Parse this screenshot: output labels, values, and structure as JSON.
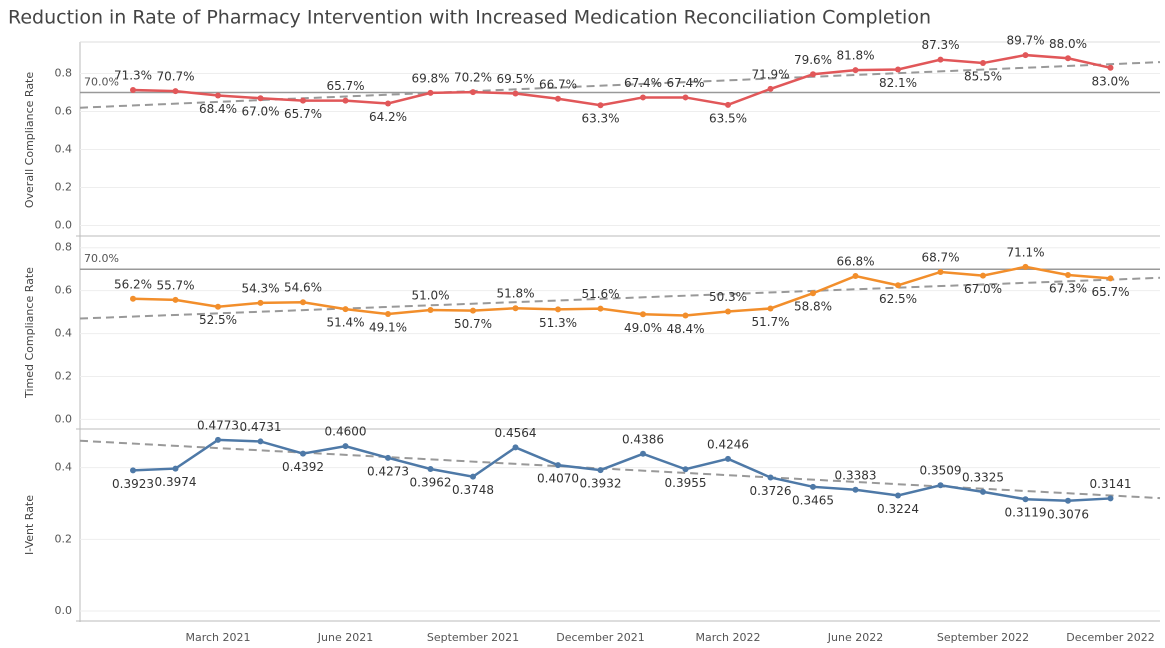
{
  "title": "Reduction in Rate of Pharmacy Intervention with Increased Medication Reconciliation Completion",
  "chart_data": [
    {
      "type": "line",
      "y_label": "Overall Compliance Rate",
      "ylim": [
        -0.05,
        0.95
      ],
      "yticks": [
        {
          "value": 0,
          "label": "0.0"
        },
        0.2,
        0.4,
        0.6,
        0.8
      ],
      "grid": true,
      "reference": {
        "value": 0.7,
        "label": "70.0%"
      },
      "trend": [
        0.62,
        0.86
      ],
      "series": [
        {
          "name": "Overall Compliance Rate",
          "color": "#e15759",
          "values": [
            0.713,
            0.707,
            0.684,
            0.67,
            0.657,
            0.657,
            0.642,
            0.698,
            0.702,
            0.695,
            0.667,
            0.633,
            0.674,
            0.674,
            0.635,
            0.719,
            0.796,
            0.818,
            0.821,
            0.873,
            0.855,
            0.897,
            0.88,
            0.83
          ],
          "value_labels": [
            "71.3%",
            "70.7%",
            "68.4%",
            "67.0%",
            "65.7%",
            "65.7%",
            "64.2%",
            "69.8%",
            "70.2%",
            "69.5%",
            "66.7%",
            "63.3%",
            "67.4%",
            "67.4%",
            "63.5%",
            "71.9%",
            "79.6%",
            "81.8%",
            "82.1%",
            "87.3%",
            "85.5%",
            "89.7%",
            "88.0%",
            "83.0%"
          ]
        }
      ]
    },
    {
      "type": "line",
      "y_label": "Timed Compliance Rate",
      "ylim": [
        -0.04,
        0.85
      ],
      "yticks": [
        {
          "value": 0,
          "label": "0.0"
        },
        0.2,
        0.4,
        0.6,
        0.8
      ],
      "grid": true,
      "reference": {
        "value": 0.7,
        "label": "70.0%"
      },
      "trend": [
        0.47,
        0.66
      ],
      "series": [
        {
          "name": "Timed Compliance Rate",
          "color": "#f28e2b",
          "values": [
            0.562,
            0.557,
            0.525,
            0.543,
            0.546,
            0.514,
            0.491,
            0.51,
            0.507,
            0.518,
            0.513,
            0.516,
            0.49,
            0.484,
            0.503,
            0.517,
            0.588,
            0.668,
            0.625,
            0.687,
            0.67,
            0.711,
            0.673,
            0.657
          ],
          "value_labels": [
            "56.2%",
            "55.7%",
            "52.5%",
            "54.3%",
            "54.6%",
            "51.4%",
            "49.1%",
            "51.0%",
            "50.7%",
            "51.8%",
            "51.3%",
            "51.6%",
            "49.0%",
            "48.4%",
            "50.3%",
            "51.7%",
            "58.8%",
            "66.8%",
            "62.5%",
            "68.7%",
            "67.0%",
            "71.1%",
            "67.3%",
            "65.7%"
          ]
        }
      ]
    },
    {
      "type": "line",
      "y_label": "I-Vent Rate",
      "ylim": [
        -0.025,
        0.505
      ],
      "yticks": [
        {
          "value": 0,
          "label": "0.0"
        },
        0.2,
        0.4
      ],
      "grid": true,
      "trend": [
        0.475,
        0.315
      ],
      "categories": [
        null,
        null,
        "March 2021",
        null,
        null,
        "June 2021",
        null,
        null,
        "September 2021",
        null,
        null,
        "December 2021",
        null,
        null,
        "March 2022",
        null,
        null,
        "June 2022",
        null,
        null,
        "September 2022",
        null,
        null,
        "December 2022"
      ],
      "series": [
        {
          "name": "I-Vent Rate",
          "color": "#4e79a7",
          "values": [
            0.3923,
            0.3974,
            0.4773,
            0.4731,
            0.4392,
            0.46,
            0.4273,
            0.3962,
            0.3748,
            0.4564,
            0.407,
            0.3932,
            0.4386,
            0.3955,
            0.4246,
            0.3726,
            0.3465,
            0.3383,
            0.3224,
            0.3509,
            0.3325,
            0.3119,
            0.3076,
            0.3141
          ],
          "value_labels": [
            "0.3923",
            "0.3974",
            "0.4773",
            "0.4731",
            "0.4392",
            "0.4600",
            "0.4273",
            "0.3962",
            "0.3748",
            "0.4564",
            "0.4070",
            "0.3932",
            "0.4386",
            "0.3955",
            "0.4246",
            "0.3726",
            "0.3465",
            "0.3383",
            "0.3224",
            "0.3509",
            "0.3325",
            "0.3119",
            "0.3076",
            "0.3141"
          ]
        }
      ]
    }
  ]
}
